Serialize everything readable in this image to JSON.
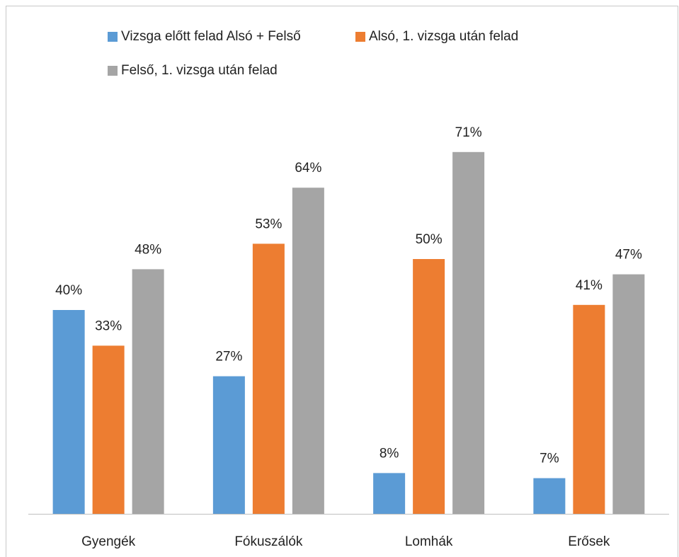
{
  "chart_data": {
    "type": "bar",
    "categories": [
      "Gyengék",
      "Fókuszálók",
      "Lomhák",
      "Erősek"
    ],
    "series": [
      {
        "name": "Vizsga előtt felad Alsó + Felső",
        "color": "#5b9bd5",
        "values": [
          40,
          27,
          8,
          7
        ],
        "value_labels": [
          "40%",
          "27%",
          "8%",
          "7%"
        ]
      },
      {
        "name": "Alsó, 1. vizsga után felad",
        "color": "#ed7d31",
        "values": [
          33,
          53,
          50,
          41
        ],
        "value_labels": [
          "33%",
          "53%",
          "50%",
          "41%"
        ]
      },
      {
        "name": "Felső, 1. vizsga után felad",
        "color": "#a5a5a5",
        "values": [
          48,
          64,
          71,
          47
        ],
        "value_labels": [
          "48%",
          "64%",
          "71%",
          "47%"
        ]
      }
    ],
    "legend": "top"
  }
}
